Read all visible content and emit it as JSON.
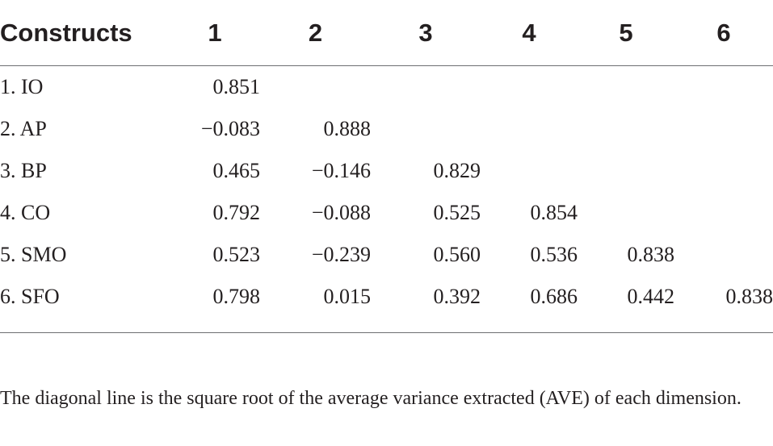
{
  "table": {
    "headers": [
      "Constructs",
      "1",
      "2",
      "3",
      "4",
      "5",
      "6"
    ],
    "rows": [
      {
        "name": "1. IO",
        "values": [
          "0.851",
          "",
          "",
          "",
          "",
          ""
        ]
      },
      {
        "name": "2. AP",
        "values": [
          "−0.083",
          "0.888",
          "",
          "",
          "",
          ""
        ]
      },
      {
        "name": "3. BP",
        "values": [
          "0.465",
          "−0.146",
          "0.829",
          "",
          "",
          ""
        ]
      },
      {
        "name": "4. CO",
        "values": [
          "0.792",
          "−0.088",
          "0.525",
          "0.854",
          "",
          ""
        ]
      },
      {
        "name": "5. SMO",
        "values": [
          "0.523",
          "−0.239",
          "0.560",
          "0.536",
          "0.838",
          ""
        ]
      },
      {
        "name": "6. SFO",
        "values": [
          "0.798",
          "0.015",
          "0.392",
          "0.686",
          "0.442",
          "0.838"
        ]
      }
    ]
  },
  "footnote": "The diagonal line is the square root of the average variance extracted (AVE) of each dimension."
}
